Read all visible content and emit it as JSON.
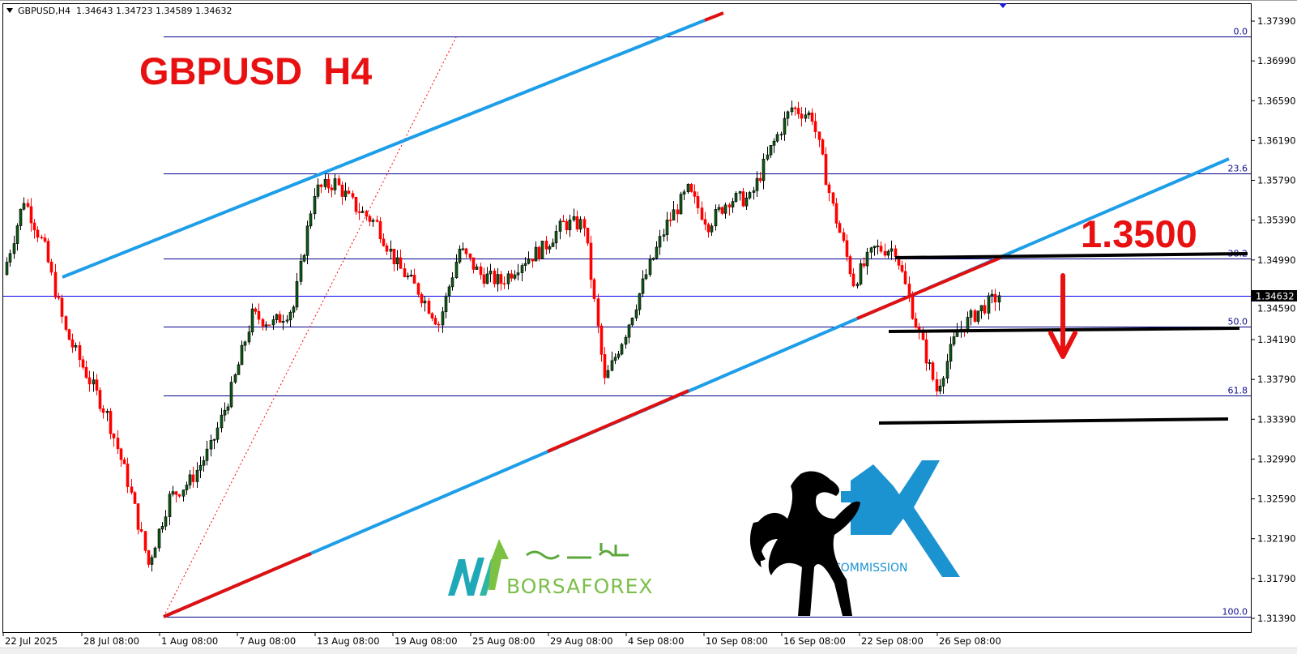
{
  "header": {
    "symbol_tf": "GBPUSD,H4",
    "ohlc": [
      "1.34643",
      "1.34723",
      "1.34589",
      "1.34632"
    ]
  },
  "annotations": {
    "title": "GBPUSD  H4",
    "target": "1.3500"
  },
  "logos": {
    "borsaforex": "BORSAFOREX",
    "fx": "FX",
    "fx_sub": "COMMISSION"
  },
  "colors": {
    "bull_body": "#0f5a14",
    "bear_body": "#ff0000",
    "fib_line": "#00008b",
    "trendline": "#1e9ee8",
    "trendline_highlight": "#e01010",
    "annotation_red": "#e81010",
    "support_line": "#000000"
  },
  "chart_data": {
    "type": "candlestick",
    "symbol": "GBPUSD",
    "timeframe": "H4",
    "last_price": 1.34632,
    "last_price_label": "1.34632",
    "ylim": [
      1.3122,
      1.3754
    ],
    "y_ticks": [
      "1.37390",
      "1.36990",
      "1.36590",
      "1.36190",
      "1.35790",
      "1.35390",
      "1.34990",
      "1.34590",
      "1.34190",
      "1.33790",
      "1.33390",
      "1.32990",
      "1.32590",
      "1.32190",
      "1.31790",
      "1.31390"
    ],
    "x_tick_labels": [
      "22 Jul 2025",
      "28 Jul 08:00",
      "1 Aug 08:00",
      "7 Aug 08:00",
      "13 Aug 08:00",
      "19 Aug 08:00",
      "25 Aug 08:00",
      "29 Aug 08:00",
      "4 Sep 08:00",
      "10 Sep 08:00",
      "16 Sep 08:00",
      "22 Sep 08:00",
      "26 Sep 08:00"
    ],
    "fibonacci": [
      {
        "label": "0.0",
        "price": 1.37235
      },
      {
        "label": "23.6",
        "price": 1.35859
      },
      {
        "label": "38.2",
        "price": 1.35005
      },
      {
        "label": "50.0",
        "price": 1.34321
      },
      {
        "label": "61.8",
        "price": 1.33629
      },
      {
        "label": "100.0",
        "price": 1.31406
      }
    ],
    "approx_close_path": [
      1.34843,
      1.35601,
      1.35101,
      1.34267,
      1.3385,
      1.33433,
      1.32767,
      1.31933,
      1.326,
      1.32767,
      1.331,
      1.33684,
      1.34434,
      1.34351,
      1.34518,
      1.35684,
      1.35768,
      1.35517,
      1.35351,
      1.34934,
      1.34684,
      1.34351,
      1.35101,
      1.34843,
      1.34768,
      1.34975,
      1.35101,
      1.35351,
      1.35351,
      1.33767,
      1.34267,
      1.34843,
      1.35351,
      1.35684,
      1.35351,
      1.35601,
      1.35601,
      1.36101,
      1.36518,
      1.36435,
      1.35517,
      1.34768,
      1.35101,
      1.35101,
      1.34351,
      1.33684,
      1.34267,
      1.34476,
      1.34632
    ],
    "grid": false
  }
}
